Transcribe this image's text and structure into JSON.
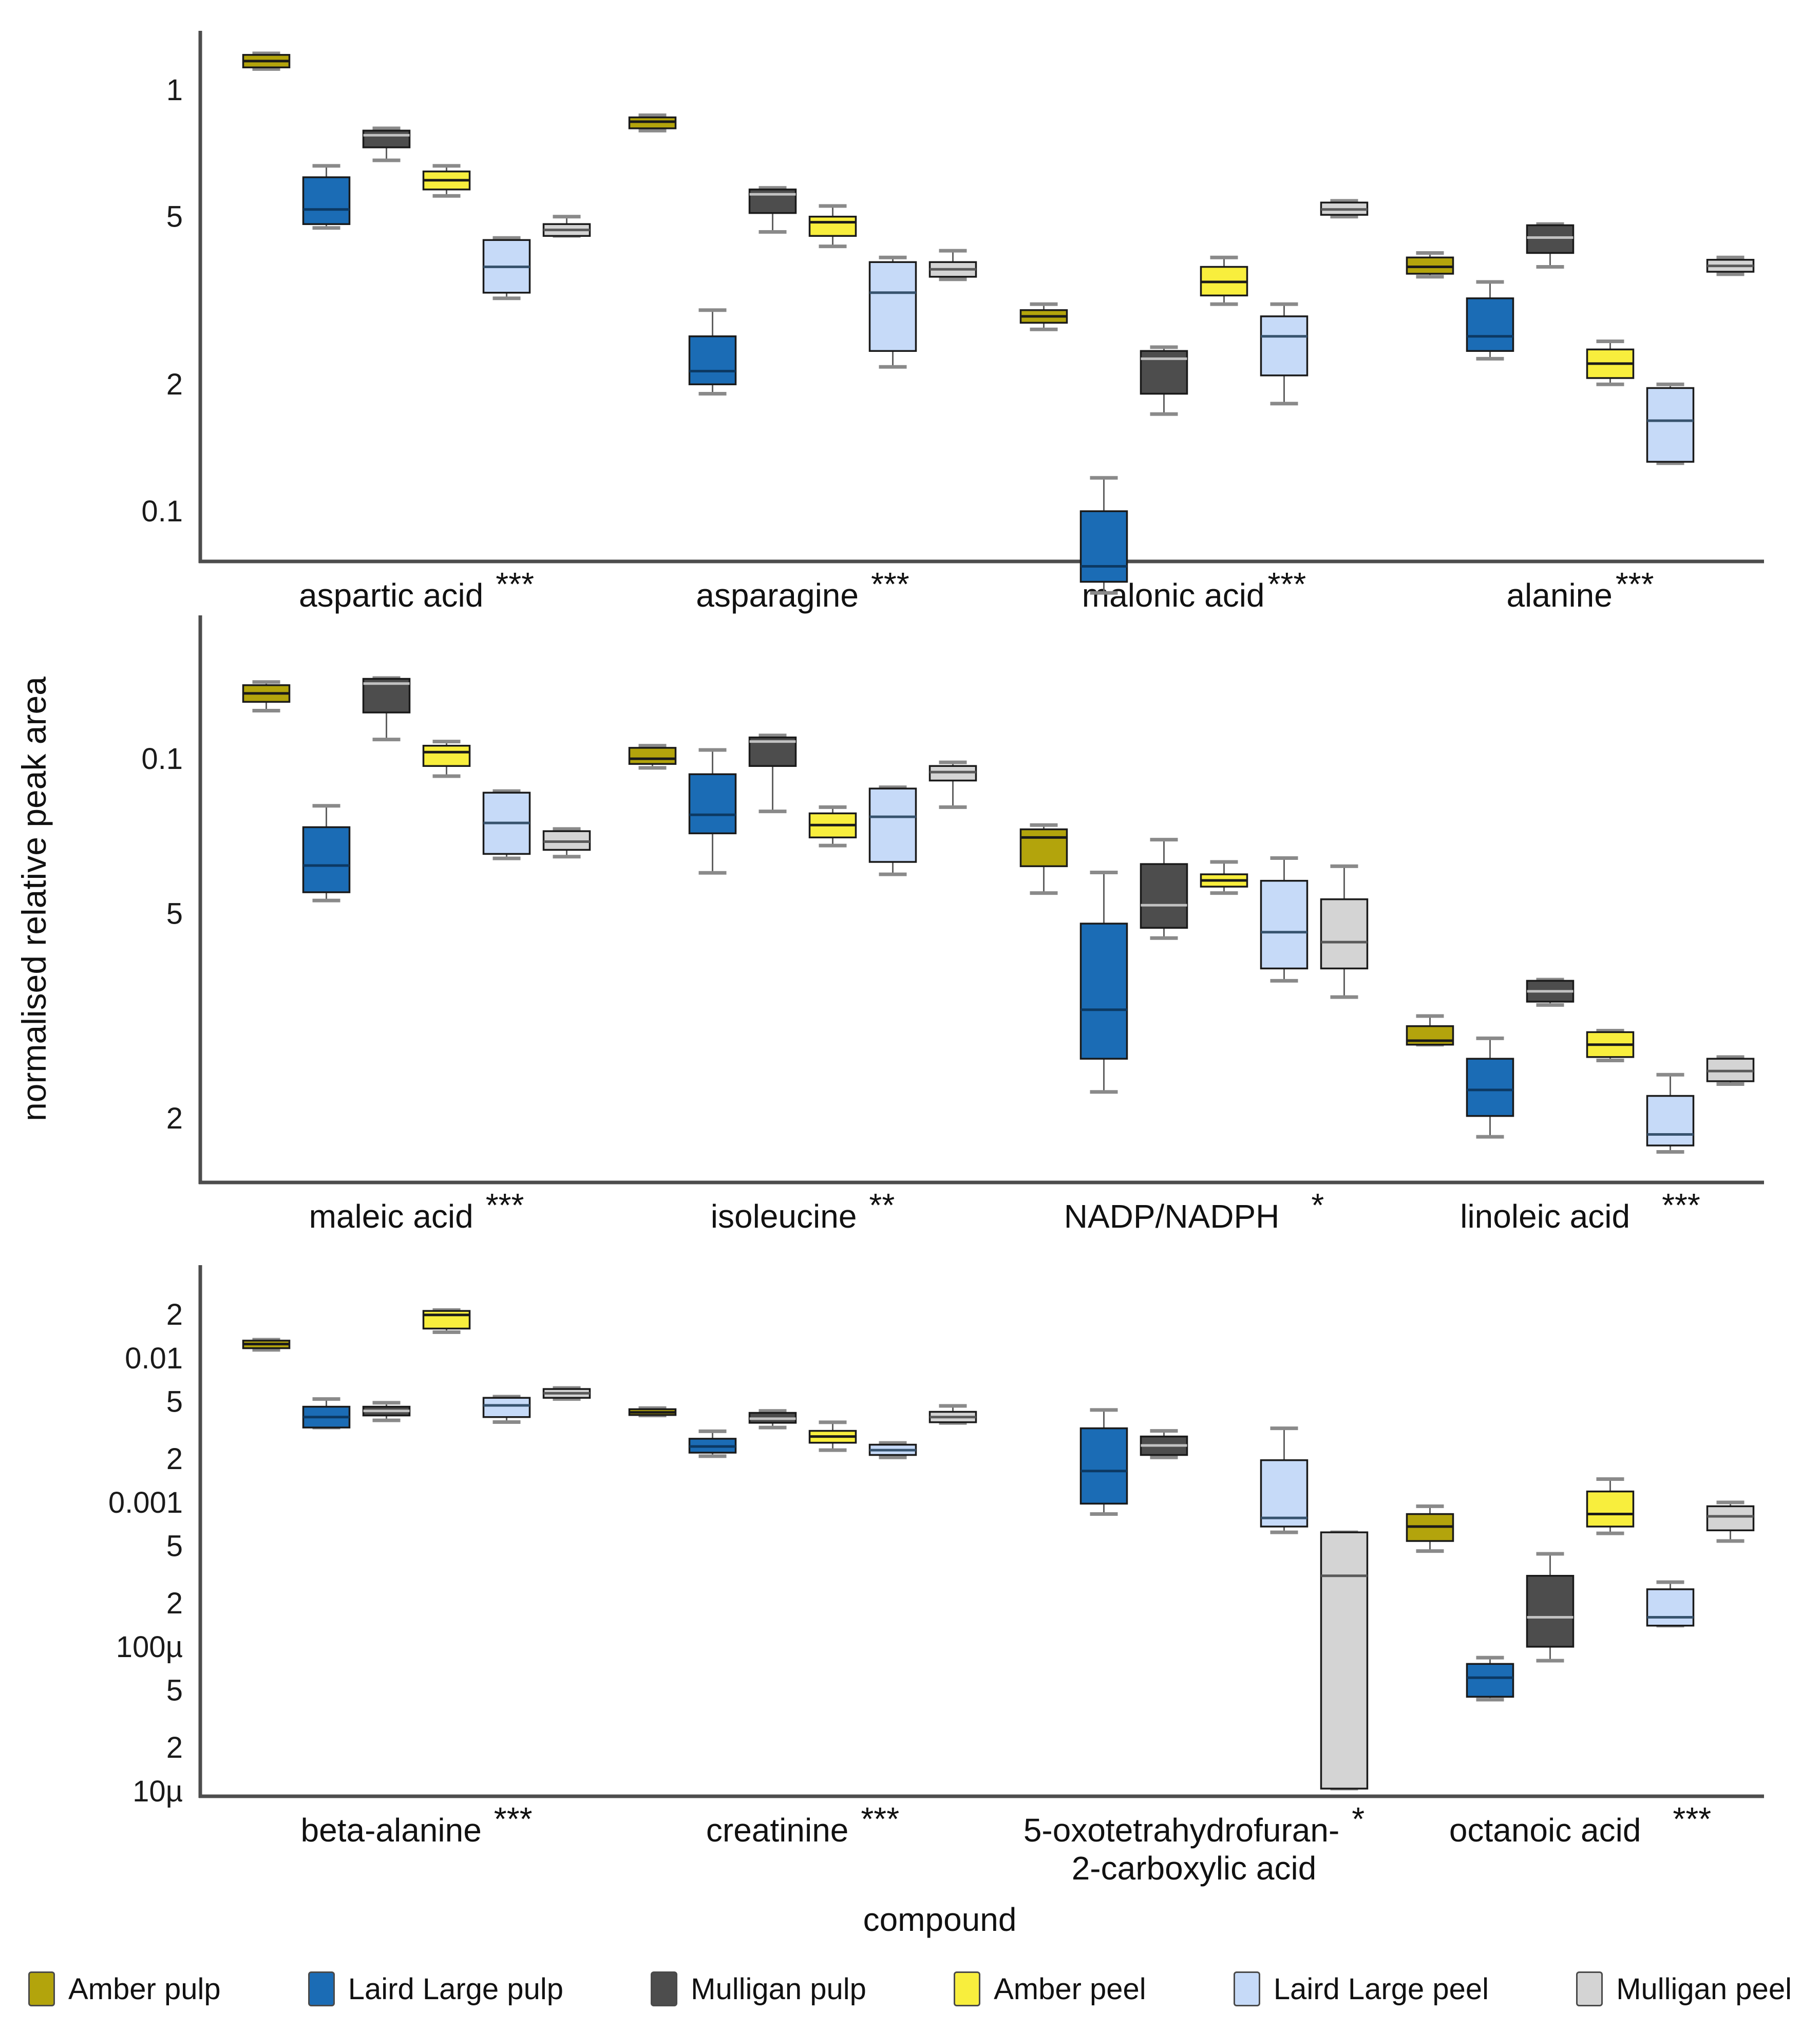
{
  "chart_data": {
    "type": "box",
    "title": "",
    "ylabel": "normalised relative peak area",
    "xlabel": "compound",
    "yscale": "log",
    "grid": false,
    "legend_position": "bottom",
    "axis_color": "#4d4d4d",
    "series": [
      {
        "id": "amber-pulp",
        "name": "Amber pulp",
        "fill": "#b3a40c",
        "median": "#1a1a1a"
      },
      {
        "id": "laird-large-pulp",
        "name": "Laird Large pulp",
        "fill": "#1b6cb5",
        "median": "#0c3963"
      },
      {
        "id": "mulligan-pulp",
        "name": "Mulligan pulp",
        "fill": "#4d4d4d",
        "median": "#c2c2c2"
      },
      {
        "id": "amber-peel",
        "name": "Amber peel",
        "fill": "#f8ee3d",
        "median": "#1a1a1a"
      },
      {
        "id": "laird-large-peel",
        "name": "Laird Large peel",
        "fill": "#c6daf8",
        "median": "#37536e"
      },
      {
        "id": "mulligan-peel",
        "name": "Mulligan peel",
        "fill": "#d4d4d4",
        "median": "#5a5a5a"
      }
    ],
    "box_stats_order": [
      "whisker_low",
      "q1",
      "median",
      "q3",
      "whisker_high"
    ],
    "panels": [
      {
        "ylim": [
          0.076,
          1.38
        ],
        "yticks": [
          {
            "label": "1",
            "value": 1
          },
          {
            "label": "5",
            "value": 0.5
          },
          {
            "label": "2",
            "value": 0.2
          },
          {
            "label": "0.1",
            "value": 0.1
          }
        ],
        "groups": [
          {
            "label": "aspartic acid",
            "stars": "***",
            "stars_gap": 1,
            "boxes": [
              [
                1.12,
                1.13,
                1.17,
                1.21,
                1.22
              ],
              [
                0.47,
                0.48,
                0.52,
                0.62,
                0.66
              ],
              [
                0.68,
                0.73,
                0.78,
                0.8,
                0.81
              ],
              [
                0.56,
                0.58,
                0.61,
                0.64,
                0.66
              ],
              [
                0.32,
                0.33,
                0.38,
                0.44,
                0.445
              ],
              [
                0.45,
                0.45,
                0.465,
                0.48,
                0.5
              ]
            ]
          },
          {
            "label": "asparagine",
            "stars": "***",
            "stars_gap": 1,
            "boxes": [
              [
                0.8,
                0.81,
                0.84,
                0.86,
                0.87
              ],
              [
                0.19,
                0.2,
                0.215,
                0.26,
                0.3
              ],
              [
                0.46,
                0.51,
                0.565,
                0.58,
                0.585
              ],
              [
                0.425,
                0.45,
                0.485,
                0.5,
                0.53
              ],
              [
                0.22,
                0.24,
                0.33,
                0.39,
                0.4
              ],
              [
                0.355,
                0.36,
                0.375,
                0.39,
                0.415
              ]
            ]
          },
          {
            "label": "malonic acid",
            "stars": "***",
            "stars_gap": 0,
            "boxes": [
              [
                0.27,
                0.28,
                0.29,
                0.3,
                0.31
              ],
              [
                0.064,
                0.068,
                0.074,
                0.1,
                0.12
              ],
              [
                0.17,
                0.19,
                0.23,
                0.24,
                0.245
              ],
              [
                0.31,
                0.325,
                0.35,
                0.38,
                0.4
              ],
              [
                0.18,
                0.21,
                0.26,
                0.29,
                0.31
              ],
              [
                0.5,
                0.505,
                0.52,
                0.54,
                0.545
              ]
            ]
          },
          {
            "label": "alanine",
            "stars": "***",
            "stars_gap": 0,
            "boxes": [
              [
                0.36,
                0.366,
                0.38,
                0.4,
                0.41
              ],
              [
                0.23,
                0.24,
                0.26,
                0.32,
                0.35
              ],
              [
                0.38,
                0.41,
                0.446,
                0.477,
                0.48
              ],
              [
                0.2,
                0.207,
                0.224,
                0.242,
                0.253
              ],
              [
                0.13,
                0.131,
                0.164,
                0.196,
                0.2
              ],
              [
                0.365,
                0.37,
                0.382,
                0.395,
                0.4
              ]
            ]
          }
        ]
      },
      {
        "ylim": [
          0.015,
          0.19
        ],
        "yticks": [
          {
            "label": "0.1",
            "value": 0.1
          },
          {
            "label": "5",
            "value": 0.05
          },
          {
            "label": "2",
            "value": 0.02
          }
        ],
        "groups": [
          {
            "label": "maleic acid",
            "stars": "***",
            "stars_gap": 1,
            "boxes": [
              [
                0.124,
                0.129,
                0.134,
                0.139,
                0.141
              ],
              [
                0.053,
                0.055,
                0.062,
                0.0736,
                0.081
              ],
              [
                0.109,
                0.123,
                0.14,
                0.143,
                0.1435
              ],
              [
                0.0925,
                0.0968,
                0.103,
                0.106,
                0.108
              ],
              [
                0.064,
                0.0653,
                0.075,
                0.0859,
                0.0865
              ],
              [
                0.0645,
                0.0665,
                0.069,
                0.0723,
                0.073
              ]
            ]
          },
          {
            "label": "isoleucine",
            "stars": "**",
            "stars_gap": 1,
            "boxes": [
              [
                0.096,
                0.0977,
                0.1,
                0.105,
                0.106
              ],
              [
                0.06,
                0.0716,
                0.0778,
                0.0933,
                0.104
              ],
              [
                0.079,
                0.0968,
                0.108,
                0.11,
                0.111
              ],
              [
                0.0678,
                0.0703,
                0.0743,
                0.0783,
                0.0805
              ],
              [
                0.0596,
                0.063,
                0.0771,
                0.0875,
                0.088
              ],
              [
                0.0805,
                0.0907,
                0.0942,
                0.0968,
                0.0984
              ]
            ]
          },
          {
            "label": "NADP/NADPH",
            "stars": "*",
            "stars_gap": 2,
            "boxes": [
              [
                0.0548,
                0.0618,
                0.0703,
                0.0729,
                0.0743
              ],
              [
                0.0225,
                0.0261,
                0.0325,
                0.0478,
                0.0601
              ],
              [
                0.0448,
                0.0469,
                0.0519,
                0.0624,
                0.0696
              ],
              [
                0.0548,
                0.0564,
                0.058,
                0.0596,
                0.063
              ],
              [
                0.037,
                0.0391,
                0.046,
                0.0579,
                0.0641
              ],
              [
                0.0344,
                0.0391,
                0.044,
                0.0533,
                0.0618
              ]
            ]
          },
          {
            "label": "linoleic acid",
            "stars": "***",
            "stars_gap": 2,
            "boxes": [
              [
                0.0278,
                0.0278,
                0.0283,
                0.0302,
                0.0316
              ],
              [
                0.0184,
                0.0202,
                0.0227,
                0.0261,
                0.0286
              ],
              [
                0.0332,
                0.0337,
                0.0353,
                0.037,
                0.0372
              ],
              [
                0.0259,
                0.0263,
                0.0278,
                0.0294,
                0.0296
              ],
              [
                0.0172,
                0.0177,
                0.0186,
                0.0221,
                0.0243
              ],
              [
                0.0233,
                0.0236,
                0.0247,
                0.0261,
                0.0263
              ]
            ]
          }
        ]
      },
      {
        "ylim": [
          9.2e-06,
          0.044
        ],
        "yticks": [
          {
            "label": "2",
            "value": 0.02
          },
          {
            "label": "0.01",
            "value": 0.01
          },
          {
            "label": "5",
            "value": 0.005
          },
          {
            "label": "2",
            "value": 0.002
          },
          {
            "label": "0.001",
            "value": 0.001
          },
          {
            "label": "5",
            "value": 0.0005
          },
          {
            "label": "2",
            "value": 0.0002
          },
          {
            "label": "100µ",
            "value": 0.0001
          },
          {
            "label": "5",
            "value": 5e-05
          },
          {
            "label": "2",
            "value": 2e-05
          },
          {
            "label": "10µ",
            "value": 1e-05
          }
        ],
        "groups": [
          {
            "label": "beta-alanine",
            "stars": "***",
            "stars_gap": 1,
            "boxes": [
              [
                0.0114,
                0.0117,
                0.0125,
                0.0132,
                0.0134
              ],
              [
                0.0033,
                0.0033,
                0.0039,
                0.0046,
                0.0052
              ],
              [
                0.0037,
                0.004,
                0.0043,
                0.0046,
                0.0049
              ],
              [
                0.0151,
                0.016,
                0.0199,
                0.0212,
                0.0215
              ],
              [
                0.0036,
                0.0039,
                0.0047,
                0.0053,
                0.0054
              ],
              [
                0.0052,
                0.0053,
                0.0057,
                0.0061,
                0.0062
              ]
            ]
          },
          {
            "label": "creatinine",
            "stars": "***",
            "stars_gap": 1,
            "boxes": [
              [
                0.004,
                0.00403,
                0.0042,
                0.00442,
                0.0045
              ],
              [
                0.00209,
                0.00221,
                0.00244,
                0.00276,
                0.00311
              ],
              [
                0.0033,
                0.00356,
                0.0038,
                0.00417,
                0.0043
              ],
              [
                0.0023,
                0.00259,
                0.00286,
                0.00313,
                0.00359
              ],
              [
                0.00205,
                0.00213,
                0.0023,
                0.00251,
                0.00258
              ],
              [
                0.00355,
                0.00359,
                0.0039,
                0.00424,
                0.00466
              ]
            ]
          },
          {
            "label": "5-oxotetrahydrofuran-",
            "label2": "2-carboxylic acid",
            "stars": "*",
            "stars_gap": 1,
            "boxes": [
              null,
              [
                0.00083,
                0.00098,
                0.00165,
                0.00326,
                0.00437
              ],
              [
                0.00205,
                0.00213,
                0.00248,
                0.00286,
                0.00313
              ],
              null,
              [
                0.00062,
                0.00068,
                0.00078,
                0.00196,
                0.00326
              ],
              [
                1.04e-05,
                1.04e-05,
                0.00031,
                0.00062,
                0.00062
              ]
            ]
          },
          {
            "label": "octanoic acid",
            "stars": "***",
            "stars_gap": 2,
            "boxes": [
              [
                0.00046,
                0.00054,
                0.00068,
                0.00083,
                0.00094
              ],
              [
                4.3e-05,
                4.5e-05,
                6.1e-05,
                7.6e-05,
                8.4e-05
              ],
              [
                8e-05,
                0.0001,
                0.00016,
                0.00031,
                0.00044
              ],
              [
                0.00061,
                0.00068,
                0.00083,
                0.00119,
                0.00145
              ],
              [
                0.00014,
                0.00014,
                0.00016,
                0.00025,
                0.00028
              ],
              [
                0.00054,
                0.00064,
                0.0008,
                0.00094,
                0.001
              ]
            ]
          }
        ]
      }
    ]
  }
}
